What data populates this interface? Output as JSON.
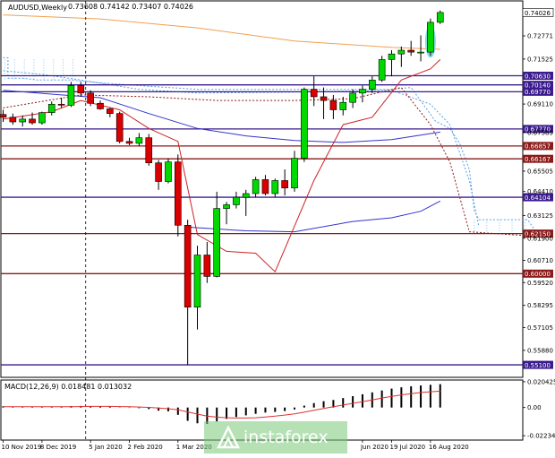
{
  "chart_data": [
    {
      "type": "candlestick",
      "title": "AUDUSD,Weekly",
      "ohlc_readout": [
        "0.73608",
        "0.74142",
        "0.73407",
        "0.74026"
      ],
      "ylim": [
        0.5443,
        0.7465
      ],
      "y_ticks": [
        "0.72771",
        "0.71525",
        "0.69110",
        "0.67585",
        "0.65505",
        "0.64410",
        "0.63125",
        "0.61900",
        "0.60710",
        "0.59520",
        "0.58295",
        "0.57105",
        "0.55880"
      ],
      "x_labels": [
        "10 Nov 2019",
        "8 Dec 2019",
        "5 Jan 2020",
        "2 Feb 2020",
        "1 Mar 2020",
        "Jun 2020",
        "19 Jul 2020",
        "16 Aug 2020"
      ],
      "current_price": "0.74026",
      "levels": [
        {
          "value": 0.7063,
          "label": "0.70630",
          "color": "#3a1a8c"
        },
        {
          "value": 0.7014,
          "label": "0.70140",
          "color": "#3a1a8c"
        },
        {
          "value": 0.6977,
          "label": "0.69770",
          "color": "#3a1a8c"
        },
        {
          "value": 0.6777,
          "label": "0.67770",
          "color": "#3a1a8c"
        },
        {
          "value": 0.66857,
          "label": "0.66857",
          "color": "#8b1a1a"
        },
        {
          "value": 0.66167,
          "label": "0.66167",
          "color": "#8b1a1a"
        },
        {
          "value": 0.64104,
          "label": "0.64104",
          "color": "#3a1a8c"
        },
        {
          "value": 0.6215,
          "label": "0.62150",
          "color": "#8b1a1a"
        },
        {
          "value": 0.6,
          "label": "0.60000",
          "color": "#8b1a1a"
        },
        {
          "value": 0.551,
          "label": "0.55100",
          "color": "#3a1a8c"
        }
      ],
      "candles": [
        {
          "o": 0.6855,
          "h": 0.688,
          "l": 0.6815,
          "c": 0.684
        },
        {
          "o": 0.684,
          "h": 0.686,
          "l": 0.68,
          "c": 0.6815
        },
        {
          "o": 0.6815,
          "h": 0.685,
          "l": 0.679,
          "c": 0.683
        },
        {
          "o": 0.683,
          "h": 0.6865,
          "l": 0.68,
          "c": 0.681
        },
        {
          "o": 0.681,
          "h": 0.687,
          "l": 0.68,
          "c": 0.6865
        },
        {
          "o": 0.6865,
          "h": 0.6925,
          "l": 0.685,
          "c": 0.691
        },
        {
          "o": 0.691,
          "h": 0.6945,
          "l": 0.689,
          "c": 0.6905
        },
        {
          "o": 0.6905,
          "h": 0.703,
          "l": 0.6895,
          "c": 0.701
        },
        {
          "o": 0.701,
          "h": 0.703,
          "l": 0.695,
          "c": 0.697
        },
        {
          "o": 0.697,
          "h": 0.6985,
          "l": 0.69,
          "c": 0.6915
        },
        {
          "o": 0.6915,
          "h": 0.693,
          "l": 0.688,
          "c": 0.6885
        },
        {
          "o": 0.6885,
          "h": 0.689,
          "l": 0.684,
          "c": 0.686
        },
        {
          "o": 0.686,
          "h": 0.687,
          "l": 0.67,
          "c": 0.671
        },
        {
          "o": 0.671,
          "h": 0.673,
          "l": 0.669,
          "c": 0.67
        },
        {
          "o": 0.67,
          "h": 0.6755,
          "l": 0.6685,
          "c": 0.673
        },
        {
          "o": 0.673,
          "h": 0.675,
          "l": 0.658,
          "c": 0.6595
        },
        {
          "o": 0.6595,
          "h": 0.661,
          "l": 0.645,
          "c": 0.6495
        },
        {
          "o": 0.6495,
          "h": 0.662,
          "l": 0.6485,
          "c": 0.66
        },
        {
          "o": 0.66,
          "h": 0.664,
          "l": 0.62,
          "c": 0.626
        },
        {
          "o": 0.626,
          "h": 0.629,
          "l": 0.551,
          "c": 0.582
        },
        {
          "o": 0.582,
          "h": 0.615,
          "l": 0.57,
          "c": 0.61
        },
        {
          "o": 0.61,
          "h": 0.617,
          "l": 0.595,
          "c": 0.5985
        },
        {
          "o": 0.5985,
          "h": 0.644,
          "l": 0.598,
          "c": 0.635
        },
        {
          "o": 0.635,
          "h": 0.6385,
          "l": 0.6265,
          "c": 0.637
        },
        {
          "o": 0.637,
          "h": 0.644,
          "l": 0.635,
          "c": 0.641
        },
        {
          "o": 0.641,
          "h": 0.645,
          "l": 0.631,
          "c": 0.643
        },
        {
          "o": 0.643,
          "h": 0.652,
          "l": 0.641,
          "c": 0.6505
        },
        {
          "o": 0.6505,
          "h": 0.653,
          "l": 0.642,
          "c": 0.643
        },
        {
          "o": 0.643,
          "h": 0.651,
          "l": 0.641,
          "c": 0.65
        },
        {
          "o": 0.65,
          "h": 0.656,
          "l": 0.642,
          "c": 0.646
        },
        {
          "o": 0.646,
          "h": 0.666,
          "l": 0.644,
          "c": 0.662
        },
        {
          "o": 0.662,
          "h": 0.7,
          "l": 0.66,
          "c": 0.699
        },
        {
          "o": 0.699,
          "h": 0.706,
          "l": 0.69,
          "c": 0.695
        },
        {
          "o": 0.695,
          "h": 0.7,
          "l": 0.683,
          "c": 0.693
        },
        {
          "o": 0.693,
          "h": 0.696,
          "l": 0.683,
          "c": 0.688
        },
        {
          "o": 0.688,
          "h": 0.695,
          "l": 0.685,
          "c": 0.692
        },
        {
          "o": 0.692,
          "h": 0.699,
          "l": 0.689,
          "c": 0.697
        },
        {
          "o": 0.697,
          "h": 0.701,
          "l": 0.692,
          "c": 0.699
        },
        {
          "o": 0.699,
          "h": 0.706,
          "l": 0.697,
          "c": 0.704
        },
        {
          "o": 0.704,
          "h": 0.717,
          "l": 0.703,
          "c": 0.715
        },
        {
          "o": 0.715,
          "h": 0.72,
          "l": 0.706,
          "c": 0.718
        },
        {
          "o": 0.718,
          "h": 0.722,
          "l": 0.711,
          "c": 0.72
        },
        {
          "o": 0.72,
          "h": 0.725,
          "l": 0.717,
          "c": 0.719
        },
        {
          "o": 0.719,
          "h": 0.728,
          "l": 0.714,
          "c": 0.719
        },
        {
          "o": 0.719,
          "h": 0.737,
          "l": 0.717,
          "c": 0.735
        },
        {
          "o": 0.735,
          "h": 0.7414,
          "l": 0.7341,
          "c": 0.7403
        }
      ],
      "moving_averages": [
        {
          "color": "#f0a050",
          "dashed": false,
          "values": [
            {
              "i": 0,
              "v": 0.739
            },
            {
              "i": 10,
              "v": 0.7368
            },
            {
              "i": 20,
              "v": 0.732
            },
            {
              "i": 30,
              "v": 0.725
            },
            {
              "i": 40,
              "v": 0.7215
            },
            {
              "i": 45,
              "v": 0.7205
            }
          ]
        },
        {
          "color": "#3333cc",
          "dashed": false,
          "values": [
            {
              "i": 0,
              "v": 0.6985
            },
            {
              "i": 6,
              "v": 0.696
            },
            {
              "i": 10,
              "v": 0.6945
            },
            {
              "i": 15,
              "v": 0.686
            },
            {
              "i": 20,
              "v": 0.678
            },
            {
              "i": 25,
              "v": 0.674
            },
            {
              "i": 30,
              "v": 0.6715
            },
            {
              "i": 35,
              "v": 0.6705
            },
            {
              "i": 40,
              "v": 0.672
            },
            {
              "i": 45,
              "v": 0.676
            }
          ]
        },
        {
          "color": "#3333cc",
          "dashed": false,
          "values": [
            {
              "i": 19,
              "v": 0.625
            },
            {
              "i": 25,
              "v": 0.623
            },
            {
              "i": 30,
              "v": 0.6225
            },
            {
              "i": 36,
              "v": 0.628
            },
            {
              "i": 40,
              "v": 0.63
            },
            {
              "i": 43,
              "v": 0.6335
            },
            {
              "i": 45,
              "v": 0.639
            }
          ]
        },
        {
          "color": "#cc2222",
          "dashed": false,
          "values": [
            {
              "i": 0,
              "v": 0.683
            },
            {
              "i": 5,
              "v": 0.687
            },
            {
              "i": 8,
              "v": 0.693
            },
            {
              "i": 12,
              "v": 0.688
            },
            {
              "i": 15,
              "v": 0.678
            },
            {
              "i": 18,
              "v": 0.671
            },
            {
              "i": 20,
              "v": 0.621
            },
            {
              "i": 23,
              "v": 0.612
            },
            {
              "i": 26,
              "v": 0.611
            },
            {
              "i": 28,
              "v": 0.601
            },
            {
              "i": 32,
              "v": 0.65
            },
            {
              "i": 35,
              "v": 0.68
            },
            {
              "i": 38,
              "v": 0.684
            },
            {
              "i": 41,
              "v": 0.704
            },
            {
              "i": 44,
              "v": 0.71
            },
            {
              "i": 45,
              "v": 0.715
            }
          ]
        },
        {
          "color": "#8b1a1a",
          "dashed": true,
          "values": [
            {
              "i": 0,
              "v": 0.689
            },
            {
              "i": 8,
              "v": 0.696
            },
            {
              "i": 15,
              "v": 0.695
            },
            {
              "i": 22,
              "v": 0.693
            },
            {
              "i": 30,
              "v": 0.693
            },
            {
              "i": 36,
              "v": 0.694
            },
            {
              "i": 41,
              "v": 0.7
            },
            {
              "i": 44,
              "v": 0.68
            },
            {
              "i": 46,
              "v": 0.66
            },
            {
              "i": 48,
              "v": 0.6225
            },
            {
              "i": 55,
              "v": 0.62
            }
          ]
        }
      ],
      "cloud": [
        {
          "kind": "polyline",
          "values": [
            {
              "i": 0,
              "v": 0.716
            },
            {
              "i": 0.5,
              "v": 0.716
            },
            {
              "i": 0.5,
              "v": 0.705
            },
            {
              "i": 2,
              "v": 0.705
            },
            {
              "i": 3.5,
              "v": 0.704
            },
            {
              "i": 7,
              "v": 0.704
            },
            {
              "i": 10,
              "v": 0.7025
            },
            {
              "i": 14,
              "v": 0.701
            },
            {
              "i": 20,
              "v": 0.699
            },
            {
              "i": 30,
              "v": 0.699
            },
            {
              "i": 40,
              "v": 0.699
            },
            {
              "i": 42,
              "v": 0.7
            },
            {
              "i": 44.5,
              "v": 0.682
            },
            {
              "i": 46,
              "v": 0.678
            },
            {
              "i": 47,
              "v": 0.67
            },
            {
              "i": 48,
              "v": 0.656
            },
            {
              "i": 48.5,
              "v": 0.634
            },
            {
              "i": 49,
              "v": 0.629
            },
            {
              "i": 54,
              "v": 0.629
            },
            {
              "i": 55,
              "v": 0.6215
            }
          ]
        },
        {
          "kind": "polyline",
          "values": [
            {
              "i": 0,
              "v": 0.709
            },
            {
              "i": 4,
              "v": 0.707
            },
            {
              "i": 8,
              "v": 0.704
            },
            {
              "i": 14,
              "v": 0.699
            },
            {
              "i": 20,
              "v": 0.697
            },
            {
              "i": 30,
              "v": 0.6975
            },
            {
              "i": 40,
              "v": 0.6985
            },
            {
              "i": 44,
              "v": 0.691
            },
            {
              "i": 46,
              "v": 0.68
            },
            {
              "i": 48,
              "v": 0.65
            },
            {
              "i": 49,
              "v": 0.625
            }
          ]
        }
      ],
      "highlight": {
        "i": 44,
        "v_top": 0.7335,
        "v_bottom": 0.716,
        "color": "#6ad8dc"
      },
      "crosshair_index": 8.5
    },
    {
      "type": "bar",
      "title": "MACD(12,26,9) 0.018481 0.013032",
      "ylim": [
        -0.0258,
        0.0218
      ],
      "y_ticks": [
        "0.020425",
        "0.00",
        "-0.022348"
      ],
      "histogram": [
        0.001,
        0.0008,
        0.0006,
        0.0006,
        0.0005,
        0.0006,
        0.0009,
        0.0012,
        0.0013,
        0.0012,
        0.001,
        0.0008,
        0.0002,
        -0.0003,
        -0.0005,
        -0.0012,
        -0.0025,
        -0.003,
        -0.0058,
        -0.0105,
        -0.0125,
        -0.013,
        -0.011,
        -0.009,
        -0.0075,
        -0.0062,
        -0.005,
        -0.004,
        -0.0035,
        -0.0028,
        -0.0015,
        0.0015,
        0.0035,
        0.005,
        0.006,
        0.0075,
        0.009,
        0.0105,
        0.012,
        0.0135,
        0.015,
        0.016,
        0.0168,
        0.0175,
        0.018,
        0.0185
      ],
      "signal": [
        0.0006,
        0.0006,
        0.0006,
        0.0006,
        0.0006,
        0.0006,
        0.0006,
        0.0007,
        0.0008,
        0.0009,
        0.0009,
        0.0009,
        0.0008,
        0.0006,
        0.0004,
        0.0001,
        -0.0004,
        -0.0009,
        -0.0018,
        -0.0035,
        -0.0052,
        -0.0068,
        -0.0076,
        -0.0081,
        -0.0083,
        -0.0083,
        -0.0081,
        -0.0075,
        -0.0068,
        -0.006,
        -0.005,
        -0.0037,
        -0.0022,
        -0.0008,
        0.0006,
        0.002,
        0.0033,
        0.0047,
        0.006,
        0.0075,
        0.0088,
        0.01,
        0.011,
        0.0119,
        0.0125,
        0.013
      ]
    }
  ],
  "watermark": "instaforex",
  "colors": {
    "bull": "#00d800",
    "bear": "#d80000",
    "grid": "#c0c0c0",
    "axisBg": "#ffffff"
  }
}
